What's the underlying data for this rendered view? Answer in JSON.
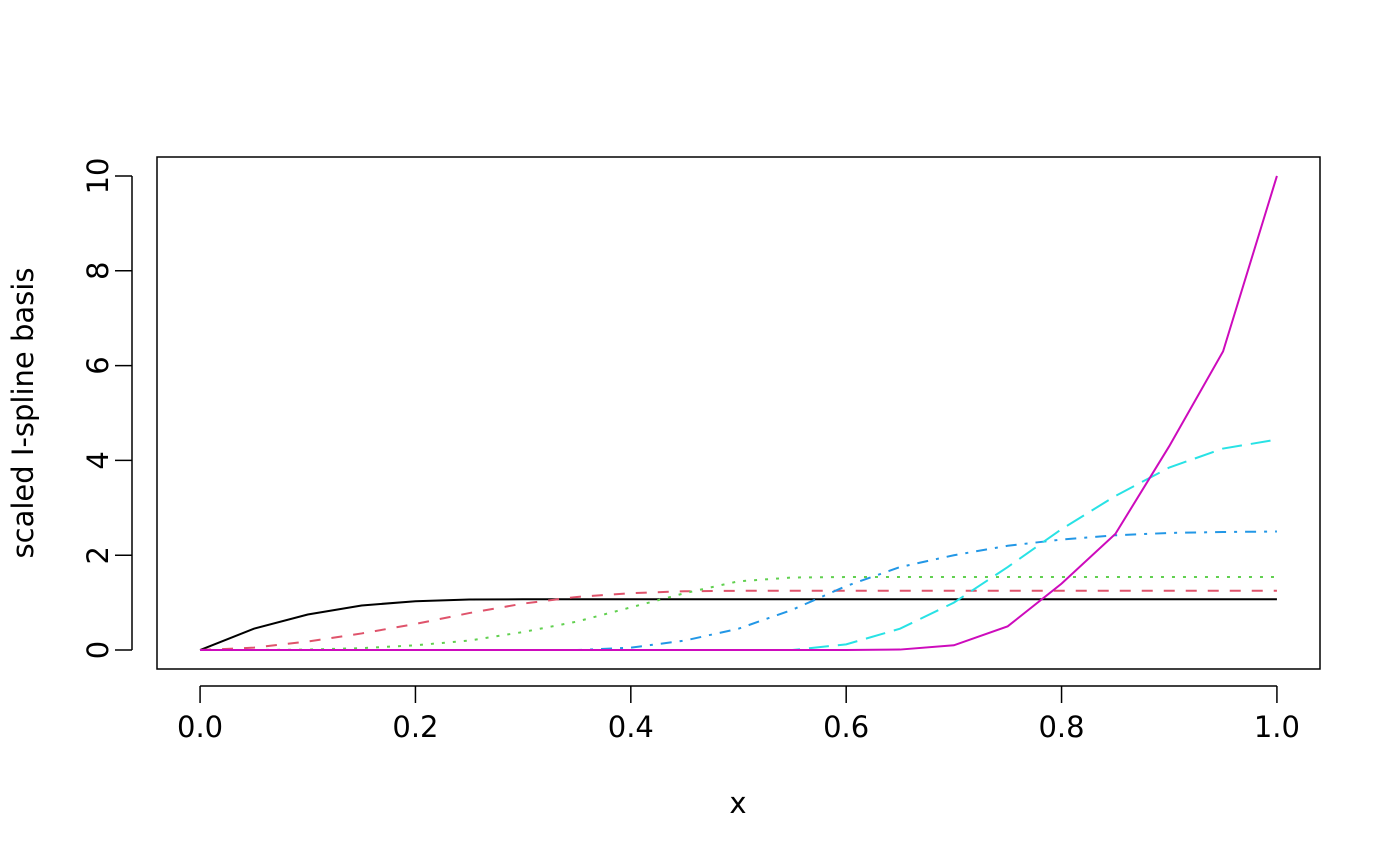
{
  "chart_data": {
    "type": "line",
    "xlabel": "x",
    "ylabel": "scaled I-spline basis",
    "x": [
      0,
      0.05,
      0.1,
      0.15,
      0.2,
      0.25,
      0.3,
      0.35,
      0.4,
      0.45,
      0.5,
      0.55,
      0.6,
      0.65,
      0.7,
      0.75,
      0.8,
      0.85,
      0.9,
      0.95,
      1.0
    ],
    "series": [
      {
        "color": "#000000",
        "linestyle": "solid",
        "values": [
          0,
          0.45,
          0.75,
          0.94,
          1.03,
          1.065,
          1.07,
          1.07,
          1.07,
          1.07,
          1.07,
          1.07,
          1.07,
          1.07,
          1.07,
          1.07,
          1.07,
          1.07,
          1.07,
          1.07,
          1.07
        ]
      },
      {
        "color": "#DF536B",
        "linestyle": "dashed",
        "values": [
          0,
          0.05,
          0.18,
          0.35,
          0.55,
          0.78,
          0.98,
          1.12,
          1.2,
          1.24,
          1.25,
          1.25,
          1.25,
          1.25,
          1.25,
          1.25,
          1.25,
          1.25,
          1.25,
          1.25,
          1.25
        ]
      },
      {
        "color": "#61D04F",
        "linestyle": "dotted",
        "values": [
          0,
          0,
          0.01,
          0.04,
          0.1,
          0.2,
          0.38,
          0.6,
          0.9,
          1.2,
          1.45,
          1.53,
          1.54,
          1.54,
          1.54,
          1.54,
          1.54,
          1.54,
          1.54,
          1.54,
          1.54
        ]
      },
      {
        "color": "#2297E6",
        "linestyle": "dotdash",
        "values": [
          0,
          0,
          0,
          0,
          0,
          0,
          0,
          0,
          0.05,
          0.2,
          0.45,
          0.85,
          1.35,
          1.75,
          2.0,
          2.2,
          2.33,
          2.42,
          2.47,
          2.49,
          2.5
        ]
      },
      {
        "color": "#28E2E5",
        "linestyle": "longdash",
        "values": [
          0,
          0,
          0,
          0,
          0,
          0,
          0,
          0,
          0,
          0,
          0,
          0,
          0.12,
          0.45,
          1.0,
          1.75,
          2.55,
          3.25,
          3.85,
          4.25,
          4.44
        ]
      },
      {
        "color": "#CD0BBC",
        "linestyle": "solid",
        "values": [
          0,
          0,
          0,
          0,
          0,
          0,
          0,
          0,
          0,
          0,
          0,
          0,
          0,
          0.01,
          0.1,
          0.5,
          1.4,
          2.45,
          4.3,
          6.3,
          10
        ]
      }
    ],
    "xlim": [
      -0.04,
      1.04
    ],
    "ylim": [
      -0.4,
      10.4
    ],
    "xticks": [
      {
        "value": 0,
        "label": "0.0"
      },
      0.2,
      0.4,
      0.6,
      0.8,
      {
        "value": 1,
        "label": "1.0"
      }
    ],
    "yticks": [
      0,
      2,
      4,
      6,
      8,
      10
    ]
  }
}
